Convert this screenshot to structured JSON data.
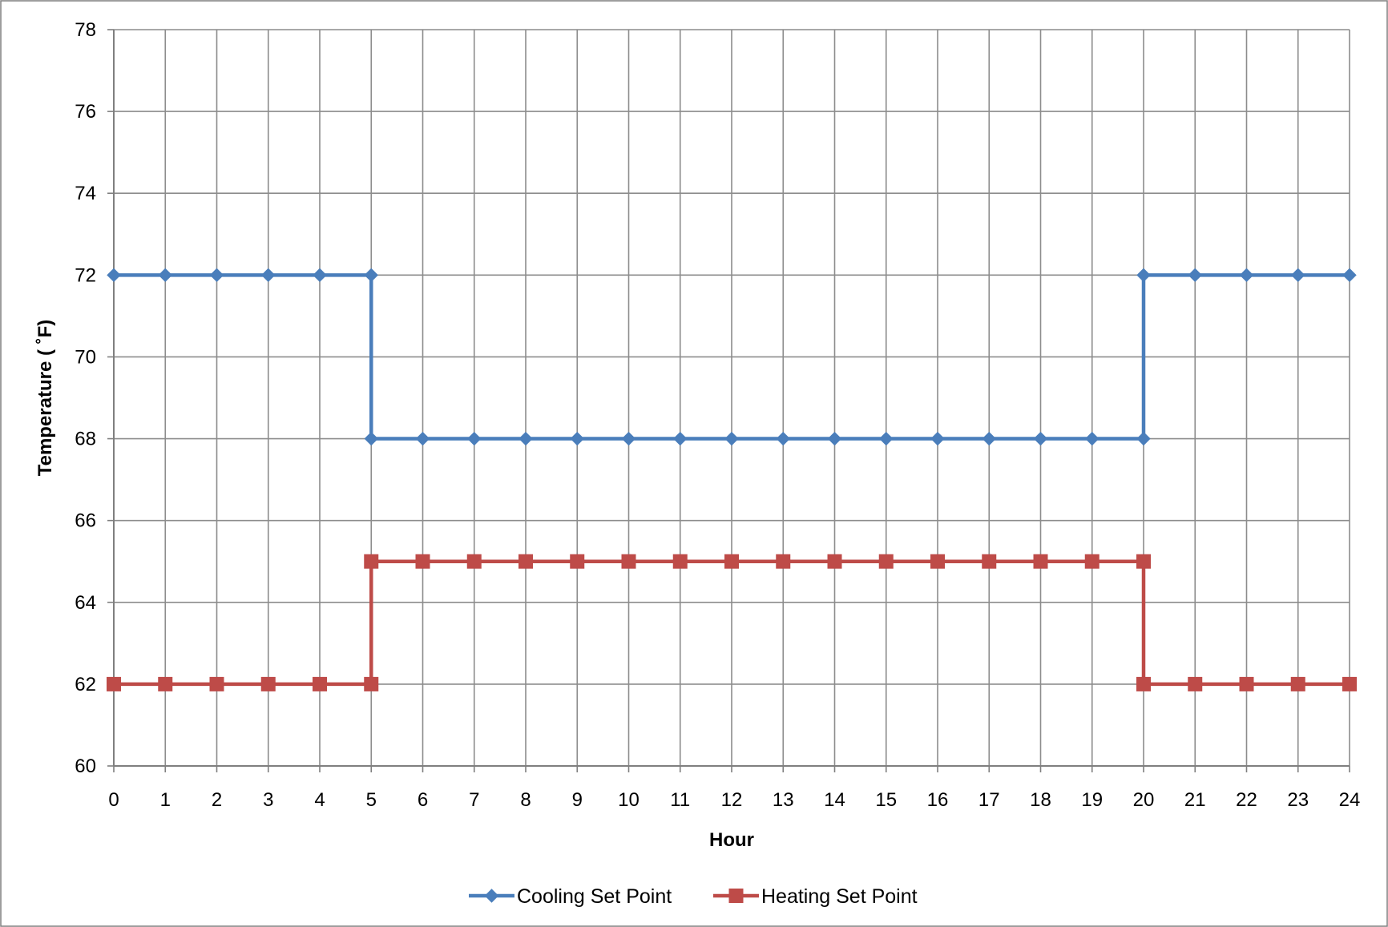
{
  "chart_data": {
    "type": "line",
    "title": "",
    "xlabel": "Hour",
    "ylabel": "Temperature ( ˚F)",
    "x": [
      0,
      1,
      2,
      3,
      4,
      5,
      5,
      6,
      7,
      8,
      9,
      10,
      11,
      12,
      13,
      14,
      15,
      16,
      17,
      18,
      19,
      20,
      20,
      21,
      22,
      23,
      24
    ],
    "x_ticks": [
      0,
      1,
      2,
      3,
      4,
      5,
      6,
      7,
      8,
      9,
      10,
      11,
      12,
      13,
      14,
      15,
      16,
      17,
      18,
      19,
      20,
      21,
      22,
      23,
      24
    ],
    "y_ticks": [
      60,
      62,
      64,
      66,
      68,
      70,
      72,
      74,
      76,
      78
    ],
    "xlim": [
      0,
      24
    ],
    "ylim": [
      60,
      78
    ],
    "grid": true,
    "legend_position": "bottom",
    "series": [
      {
        "name": "Cooling Set Point",
        "color": "#4a7ebb",
        "marker": "diamond",
        "values": [
          72,
          72,
          72,
          72,
          72,
          72,
          68,
          68,
          68,
          68,
          68,
          68,
          68,
          68,
          68,
          68,
          68,
          68,
          68,
          68,
          68,
          68,
          72,
          72,
          72,
          72,
          72
        ]
      },
      {
        "name": "Heating Set Point",
        "color": "#be4b48",
        "marker": "square",
        "values": [
          62,
          62,
          62,
          62,
          62,
          62,
          65,
          65,
          65,
          65,
          65,
          65,
          65,
          65,
          65,
          65,
          65,
          65,
          65,
          65,
          65,
          65,
          62,
          62,
          62,
          62,
          62
        ]
      }
    ]
  }
}
